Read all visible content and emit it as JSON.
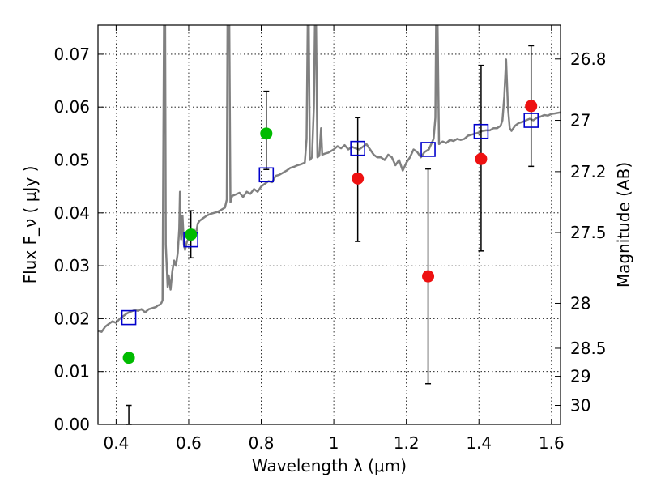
{
  "chart_data": {
    "type": "scatter",
    "title": "",
    "xlabel": "Wavelength  λ (μm)",
    "ylabel": "Flux  F_ν  ( μJy )",
    "y2label": "Magnitude (AB)",
    "xlim": [
      0.35,
      1.625
    ],
    "ylim": [
      0.0,
      0.0755
    ],
    "grid": true,
    "x_ticks": [
      0.4,
      0.6,
      0.8,
      1.0,
      1.2,
      1.4,
      1.6
    ],
    "x_tick_labels": [
      "0.4",
      "0.6",
      "0.8",
      "1",
      "1.2",
      "1.4",
      "1.6"
    ],
    "y_ticks": [
      0.0,
      0.01,
      0.02,
      0.03,
      0.04,
      0.05,
      0.06,
      0.07
    ],
    "y_tick_labels": [
      "0.00",
      "0.01",
      "0.02",
      "0.03",
      "0.04",
      "0.05",
      "0.06",
      "0.07"
    ],
    "y2_ticks": [
      {
        "flux": 0.0691,
        "label": "26.8"
      },
      {
        "flux": 0.0575,
        "label": "27"
      },
      {
        "flux": 0.0478,
        "label": "27.2"
      },
      {
        "flux": 0.0363,
        "label": "27.5"
      },
      {
        "flux": 0.0229,
        "label": "28"
      },
      {
        "flux": 0.0144,
        "label": "28.5"
      },
      {
        "flux": 0.0091,
        "label": "29"
      },
      {
        "flux": 0.0036,
        "label": "30"
      }
    ],
    "colors": {
      "model": "#808080",
      "green": "#00bb00",
      "red": "#ee1111",
      "squares": "#0000cc",
      "errorbars": "#000000",
      "grid": "#000000"
    },
    "series": [
      {
        "marker": "green-circle",
        "points": [
          {
            "x": 0.435,
            "y": 0.0126,
            "ylo": 0.0036,
            "yhi": 0.0
          },
          {
            "x": 0.606,
            "y": 0.0359,
            "ylo": 0.0315,
            "yhi": 0.0404
          },
          {
            "x": 0.814,
            "y": 0.055,
            "ylo": 0.0482,
            "yhi": 0.063
          }
        ]
      },
      {
        "marker": "red-circle",
        "points": [
          {
            "x": 1.066,
            "y": 0.0465,
            "ylo": 0.0346,
            "yhi": 0.058
          },
          {
            "x": 1.26,
            "y": 0.028,
            "ylo": 0.0077,
            "yhi": 0.0483
          },
          {
            "x": 1.406,
            "y": 0.0502,
            "ylo": 0.0328,
            "yhi": 0.0679
          },
          {
            "x": 1.544,
            "y": 0.0602,
            "ylo": 0.0488,
            "yhi": 0.0716
          }
        ]
      },
      {
        "marker": "blue-open-square",
        "points": [
          {
            "x": 0.435,
            "y": 0.0202
          },
          {
            "x": 0.606,
            "y": 0.0349
          },
          {
            "x": 0.814,
            "y": 0.0472
          },
          {
            "x": 1.066,
            "y": 0.0522
          },
          {
            "x": 1.26,
            "y": 0.052
          },
          {
            "x": 1.406,
            "y": 0.0554
          },
          {
            "x": 1.544,
            "y": 0.0575
          }
        ]
      },
      {
        "marker": "model-line",
        "points": [
          [
            0.35,
            0.0177
          ],
          [
            0.36,
            0.0175
          ],
          [
            0.37,
            0.0185
          ],
          [
            0.38,
            0.019
          ],
          [
            0.39,
            0.0195
          ],
          [
            0.4,
            0.0192
          ],
          [
            0.41,
            0.02
          ],
          [
            0.42,
            0.0205
          ],
          [
            0.43,
            0.021
          ],
          [
            0.44,
            0.0213
          ],
          [
            0.45,
            0.0216
          ],
          [
            0.46,
            0.0215
          ],
          [
            0.47,
            0.0218
          ],
          [
            0.48,
            0.0212
          ],
          [
            0.49,
            0.0218
          ],
          [
            0.5,
            0.022
          ],
          [
            0.51,
            0.0222
          ],
          [
            0.515,
            0.0225
          ],
          [
            0.52,
            0.0226
          ],
          [
            0.525,
            0.023
          ],
          [
            0.528,
            0.0235
          ],
          [
            0.53,
            0.05
          ],
          [
            0.532,
            0.0755
          ],
          [
            0.535,
            0.0755
          ],
          [
            0.537,
            0.034
          ],
          [
            0.542,
            0.026
          ],
          [
            0.545,
            0.0282
          ],
          [
            0.55,
            0.0255
          ],
          [
            0.555,
            0.029
          ],
          [
            0.56,
            0.031
          ],
          [
            0.565,
            0.03
          ],
          [
            0.57,
            0.0325
          ],
          [
            0.574,
            0.037
          ],
          [
            0.576,
            0.044
          ],
          [
            0.579,
            0.035
          ],
          [
            0.583,
            0.0395
          ],
          [
            0.587,
            0.034
          ],
          [
            0.59,
            0.033
          ],
          [
            0.595,
            0.0345
          ],
          [
            0.6,
            0.0352
          ],
          [
            0.605,
            0.0356
          ],
          [
            0.61,
            0.0362
          ],
          [
            0.615,
            0.0368
          ],
          [
            0.62,
            0.036
          ],
          [
            0.625,
            0.038
          ],
          [
            0.63,
            0.0385
          ],
          [
            0.64,
            0.039
          ],
          [
            0.65,
            0.0395
          ],
          [
            0.66,
            0.0398
          ],
          [
            0.67,
            0.04
          ],
          [
            0.68,
            0.0402
          ],
          [
            0.69,
            0.0406
          ],
          [
            0.7,
            0.041
          ],
          [
            0.705,
            0.0425
          ],
          [
            0.707,
            0.0755
          ],
          [
            0.712,
            0.0755
          ],
          [
            0.715,
            0.042
          ],
          [
            0.72,
            0.0432
          ],
          [
            0.73,
            0.0435
          ],
          [
            0.74,
            0.0438
          ],
          [
            0.75,
            0.043
          ],
          [
            0.76,
            0.044
          ],
          [
            0.77,
            0.0436
          ],
          [
            0.78,
            0.0445
          ],
          [
            0.79,
            0.044
          ],
          [
            0.8,
            0.045
          ],
          [
            0.81,
            0.0455
          ],
          [
            0.82,
            0.046
          ],
          [
            0.83,
            0.0458
          ],
          [
            0.84,
            0.047
          ],
          [
            0.85,
            0.0472
          ],
          [
            0.86,
            0.0476
          ],
          [
            0.87,
            0.048
          ],
          [
            0.88,
            0.0485
          ],
          [
            0.89,
            0.0487
          ],
          [
            0.9,
            0.049
          ],
          [
            0.91,
            0.0492
          ],
          [
            0.92,
            0.0495
          ],
          [
            0.925,
            0.054
          ],
          [
            0.928,
            0.0755
          ],
          [
            0.931,
            0.0755
          ],
          [
            0.934,
            0.05
          ],
          [
            0.94,
            0.0505
          ],
          [
            0.945,
            0.06
          ],
          [
            0.948,
            0.0755
          ],
          [
            0.951,
            0.0755
          ],
          [
            0.955,
            0.0505
          ],
          [
            0.96,
            0.0508
          ],
          [
            0.965,
            0.056
          ],
          [
            0.968,
            0.051
          ],
          [
            0.975,
            0.0512
          ],
          [
            0.985,
            0.0514
          ],
          [
            1.0,
            0.052
          ],
          [
            1.01,
            0.0526
          ],
          [
            1.02,
            0.0522
          ],
          [
            1.03,
            0.0528
          ],
          [
            1.04,
            0.052
          ],
          [
            1.05,
            0.0525
          ],
          [
            1.06,
            0.0522
          ],
          [
            1.07,
            0.052
          ],
          [
            1.08,
            0.0525
          ],
          [
            1.09,
            0.053
          ],
          [
            1.1,
            0.052
          ],
          [
            1.11,
            0.051
          ],
          [
            1.12,
            0.0505
          ],
          [
            1.13,
            0.0505
          ],
          [
            1.14,
            0.05
          ],
          [
            1.15,
            0.051
          ],
          [
            1.16,
            0.0505
          ],
          [
            1.17,
            0.049
          ],
          [
            1.18,
            0.05
          ],
          [
            1.19,
            0.048
          ],
          [
            1.2,
            0.0495
          ],
          [
            1.21,
            0.0505
          ],
          [
            1.22,
            0.052
          ],
          [
            1.23,
            0.0515
          ],
          [
            1.24,
            0.0505
          ],
          [
            1.25,
            0.0515
          ],
          [
            1.262,
            0.052
          ],
          [
            1.275,
            0.054
          ],
          [
            1.28,
            0.058
          ],
          [
            1.282,
            0.0755
          ],
          [
            1.286,
            0.0755
          ],
          [
            1.29,
            0.053
          ],
          [
            1.3,
            0.0535
          ],
          [
            1.31,
            0.0532
          ],
          [
            1.32,
            0.0538
          ],
          [
            1.33,
            0.0536
          ],
          [
            1.34,
            0.054
          ],
          [
            1.35,
            0.0538
          ],
          [
            1.36,
            0.054
          ],
          [
            1.37,
            0.0546
          ],
          [
            1.38,
            0.0548
          ],
          [
            1.39,
            0.055
          ],
          [
            1.4,
            0.0552
          ],
          [
            1.41,
            0.0555
          ],
          [
            1.42,
            0.0556
          ],
          [
            1.43,
            0.0556
          ],
          [
            1.44,
            0.056
          ],
          [
            1.45,
            0.056
          ],
          [
            1.46,
            0.0565
          ],
          [
            1.465,
            0.0575
          ],
          [
            1.47,
            0.062
          ],
          [
            1.475,
            0.069
          ],
          [
            1.48,
            0.06
          ],
          [
            1.485,
            0.056
          ],
          [
            1.49,
            0.0555
          ],
          [
            1.5,
            0.0565
          ],
          [
            1.51,
            0.057
          ],
          [
            1.52,
            0.0572
          ],
          [
            1.53,
            0.0575
          ],
          [
            1.54,
            0.0578
          ],
          [
            1.55,
            0.0575
          ],
          [
            1.56,
            0.058
          ],
          [
            1.57,
            0.0582
          ],
          [
            1.58,
            0.0585
          ],
          [
            1.59,
            0.0584
          ],
          [
            1.6,
            0.0587
          ],
          [
            1.61,
            0.0588
          ],
          [
            1.625,
            0.059
          ]
        ]
      }
    ]
  }
}
